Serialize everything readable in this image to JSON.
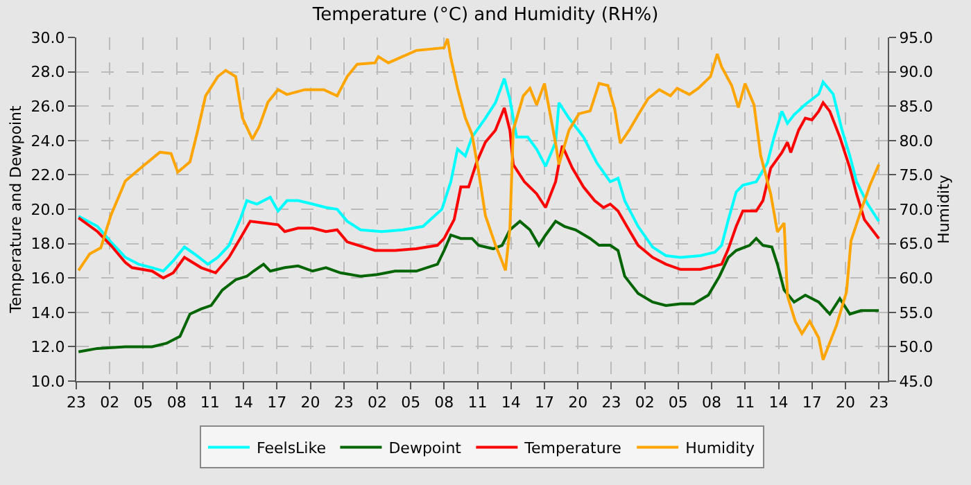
{
  "chart_data": {
    "type": "line",
    "title": "Temperature (°C) and Humidity (RH%)",
    "ylabel": "Temperature and Dewpoint",
    "y2label": "Humidity",
    "xlim": [
      "--01-01T23:00",
      "--01-04T23:48"
    ],
    "xticks": [
      {
        "value": "--01-01T23:00",
        "label": "23"
      },
      {
        "value": "--01-02T02:00",
        "label": "02"
      },
      {
        "value": "--01-02T05:00",
        "label": "05"
      },
      {
        "value": "--01-02T08:00",
        "label": "08"
      },
      {
        "value": "--01-02T11:00",
        "label": "11"
      },
      {
        "value": "--01-02T14:00",
        "label": "14"
      },
      {
        "value": "--01-02T17:00",
        "label": "17"
      },
      {
        "value": "--01-02T20:00",
        "label": "20"
      },
      {
        "value": "--01-02T23:00",
        "label": "23"
      },
      {
        "value": "--01-03T02:00",
        "label": "02"
      },
      {
        "value": "--01-03T05:00",
        "label": "05"
      },
      {
        "value": "--01-03T08:00",
        "label": "08"
      },
      {
        "value": "--01-03T11:00",
        "label": "11"
      },
      {
        "value": "--01-03T14:00",
        "label": "14"
      },
      {
        "value": "--01-03T17:00",
        "label": "17"
      },
      {
        "value": "--01-03T20:00",
        "label": "20"
      },
      {
        "value": "--01-03T23:00",
        "label": "23"
      },
      {
        "value": "--01-04T02:00",
        "label": "02"
      },
      {
        "value": "--01-04T05:00",
        "label": "05"
      },
      {
        "value": "--01-04T08:00",
        "label": "08"
      },
      {
        "value": "--01-04T11:00",
        "label": "11"
      },
      {
        "value": "--01-04T14:00",
        "label": "14"
      },
      {
        "value": "--01-04T17:00",
        "label": "17"
      },
      {
        "value": "--01-04T20:00",
        "label": "20"
      },
      {
        "value": "--01-04T23:00",
        "label": "23"
      }
    ],
    "ylim": [
      10,
      30
    ],
    "yticks": [
      {
        "value": 10,
        "label": "10.0"
      },
      {
        "value": 12,
        "label": "12.0"
      },
      {
        "value": 14,
        "label": "14.0"
      },
      {
        "value": 16,
        "label": "16.0"
      },
      {
        "value": 18,
        "label": "18.0"
      },
      {
        "value": 20,
        "label": "20.0"
      },
      {
        "value": 22,
        "label": "22.0"
      },
      {
        "value": 24,
        "label": "24.0"
      },
      {
        "value": 26,
        "label": "26.0"
      },
      {
        "value": 28,
        "label": "28.0"
      },
      {
        "value": 30,
        "label": "30.0"
      }
    ],
    "y2lim": [
      45,
      95
    ],
    "y2ticks": [
      {
        "value": 45,
        "label": "45.0"
      },
      {
        "value": 50,
        "label": "50.0"
      },
      {
        "value": 55,
        "label": "55.0"
      },
      {
        "value": 60,
        "label": "60.0"
      },
      {
        "value": 65,
        "label": "65.0"
      },
      {
        "value": 70,
        "label": "70.0"
      },
      {
        "value": 75,
        "label": "75.0"
      },
      {
        "value": 80,
        "label": "80.0"
      },
      {
        "value": 85,
        "label": "85.0"
      },
      {
        "value": 90,
        "label": "90.0"
      },
      {
        "value": 95,
        "label": "95.0"
      }
    ],
    "grid": true,
    "legend": "bottom",
    "marker": "none",
    "line_style": "solid",
    "series": [
      {
        "name": "FeelsLike",
        "color": "#00ffff",
        "x": [
          "--01-01T23:12",
          "--01-02T00:54",
          "--01-02T02:06",
          "--01-02T03:24",
          "--01-02T04:36",
          "--01-02T05:48",
          "--01-02T06:48",
          "--01-02T07:42",
          "--01-02T08:42",
          "--01-02T09:36",
          "--01-02T10:48",
          "--01-02T11:42",
          "--01-02T12:42",
          "--01-02T13:42",
          "--01-02T14:18",
          "--01-02T15:12",
          "--01-02T16:24",
          "--01-02T17:06",
          "--01-02T17:54",
          "--01-02T18:54",
          "--01-02T20:12",
          "--01-02T21:24",
          "--01-02T22:24",
          "--01-02T23:18",
          "--01-03T00:30",
          "--01-03T02:24",
          "--01-03T04:18",
          "--01-03T06:06",
          "--01-03T07:48",
          "--01-03T08:36",
          "--01-03T09:12",
          "--01-03T09:54",
          "--01-03T10:30",
          "--01-03T11:42",
          "--01-03T12:36",
          "--01-03T13:24",
          "--01-03T13:54",
          "--01-03T14:30",
          "--01-03T15:30",
          "--01-03T16:18",
          "--01-03T17:06",
          "--01-03T18:00",
          "--01-03T18:18",
          "--01-03T19:12",
          "--01-03T20:30",
          "--01-03T21:42",
          "--01-03T22:54",
          "--01-03T23:36",
          "--01-04T00:12",
          "--01-04T01:24",
          "--01-04T02:42",
          "--01-04T03:54",
          "--01-04T05:12",
          "--01-04T07:00",
          "--01-04T08:18",
          "--01-04T08:54",
          "--01-04T09:30",
          "--01-04T10:12",
          "--01-04T10:48",
          "--01-04T12:00",
          "--01-04T13:00",
          "--01-04T13:36",
          "--01-04T14:18",
          "--01-04T14:48",
          "--01-04T15:24",
          "--01-04T16:24",
          "--01-04T17:36",
          "--01-04T18:00",
          "--01-04T18:54",
          "--01-04T19:42",
          "--01-04T20:24",
          "--01-04T21:00",
          "--01-04T22:00",
          "--01-04T23:00"
        ],
        "values": [
          19.6,
          19.0,
          18.1,
          17.2,
          16.8,
          16.6,
          16.4,
          17.0,
          17.8,
          17.4,
          16.8,
          17.2,
          17.9,
          19.4,
          20.5,
          20.3,
          20.7,
          19.9,
          20.5,
          20.5,
          20.3,
          20.1,
          20.0,
          19.3,
          18.8,
          18.7,
          18.8,
          19.0,
          20.0,
          21.6,
          23.5,
          23.1,
          24.2,
          25.3,
          26.2,
          27.6,
          26.4,
          24.2,
          24.2,
          23.5,
          22.5,
          23.9,
          26.2,
          25.3,
          24.2,
          22.7,
          21.6,
          21.8,
          20.5,
          19.0,
          17.8,
          17.3,
          17.2,
          17.3,
          17.5,
          17.9,
          19.4,
          21.0,
          21.4,
          21.6,
          22.7,
          24.2,
          25.7,
          25.0,
          25.5,
          26.1,
          26.7,
          27.4,
          26.7,
          24.6,
          23.1,
          21.6,
          20.3,
          19.3
        ]
      },
      {
        "name": "Dewpoint",
        "color": "#006400",
        "x": [
          "--01-01T23:12",
          "--01-02T00:54",
          "--01-02T03:24",
          "--01-02T05:48",
          "--01-02T07:06",
          "--01-02T08:18",
          "--01-02T09:12",
          "--01-02T10:12",
          "--01-02T11:06",
          "--01-02T12:06",
          "--01-02T13:18",
          "--01-02T14:18",
          "--01-02T14:54",
          "--01-02T15:48",
          "--01-02T16:24",
          "--01-02T17:42",
          "--01-02T18:54",
          "--01-02T20:12",
          "--01-02T21:24",
          "--01-02T22:42",
          "--01-03T00:30",
          "--01-03T02:00",
          "--01-03T03:36",
          "--01-03T05:30",
          "--01-03T07:24",
          "--01-03T08:00",
          "--01-03T08:36",
          "--01-03T09:30",
          "--01-03T10:30",
          "--01-03T11:06",
          "--01-03T12:24",
          "--01-03T13:12",
          "--01-03T13:54",
          "--01-03T14:48",
          "--01-03T15:42",
          "--01-03T16:30",
          "--01-03T17:06",
          "--01-03T18:00",
          "--01-03T18:48",
          "--01-03T19:48",
          "--01-03T21:06",
          "--01-03T21:54",
          "--01-03T22:54",
          "--01-03T23:36",
          "--01-04T00:12",
          "--01-04T00:48",
          "--01-04T01:24",
          "--01-04T02:42",
          "--01-04T03:54",
          "--01-04T05:12",
          "--01-04T06:24",
          "--01-04T07:42",
          "--01-04T08:42",
          "--01-04T09:30",
          "--01-04T10:12",
          "--01-04T11:24",
          "--01-04T12:00",
          "--01-04T12:36",
          "--01-04T13:24",
          "--01-04T13:54",
          "--01-04T14:30",
          "--01-04T15:24",
          "--01-04T16:24",
          "--01-04T17:36",
          "--01-04T18:36",
          "--01-04T19:30",
          "--01-04T20:24",
          "--01-04T21:24",
          "--01-04T23:00"
        ],
        "values": [
          11.7,
          11.9,
          12.0,
          12.0,
          12.2,
          12.6,
          13.9,
          14.2,
          14.4,
          15.3,
          15.9,
          16.1,
          16.4,
          16.8,
          16.4,
          16.6,
          16.7,
          16.4,
          16.6,
          16.3,
          16.1,
          16.2,
          16.4,
          16.4,
          16.8,
          17.6,
          18.5,
          18.3,
          18.3,
          17.9,
          17.7,
          17.9,
          18.8,
          19.3,
          18.8,
          17.9,
          18.5,
          19.3,
          19.0,
          18.8,
          18.3,
          17.9,
          17.9,
          17.6,
          16.1,
          15.6,
          15.1,
          14.6,
          14.4,
          14.5,
          14.5,
          15.0,
          16.1,
          17.2,
          17.6,
          17.9,
          18.3,
          17.9,
          17.8,
          16.8,
          15.3,
          14.6,
          15.0,
          14.6,
          13.9,
          14.8,
          13.9,
          14.1,
          14.1
        ]
      },
      {
        "name": "Temperature",
        "color": "#ff0000",
        "x": [
          "--01-01T23:12",
          "--01-02T00:54",
          "--01-02T02:06",
          "--01-02T03:24",
          "--01-02T04:00",
          "--01-02T05:48",
          "--01-02T06:48",
          "--01-02T07:42",
          "--01-02T08:42",
          "--01-02T10:12",
          "--01-02T11:30",
          "--01-02T12:42",
          "--01-02T13:42",
          "--01-02T14:36",
          "--01-02T15:48",
          "--01-02T17:06",
          "--01-02T17:42",
          "--01-02T18:54",
          "--01-02T20:12",
          "--01-02T21:24",
          "--01-02T22:24",
          "--01-02T23:18",
          "--01-03T00:18",
          "--01-03T01:48",
          "--01-03T03:36",
          "--01-03T05:30",
          "--01-03T07:24",
          "--01-03T08:00",
          "--01-03T08:54",
          "--01-03T09:30",
          "--01-03T10:12",
          "--01-03T10:54",
          "--01-03T11:42",
          "--01-03T12:36",
          "--01-03T13:24",
          "--01-03T13:54",
          "--01-03T14:12",
          "--01-03T15:12",
          "--01-03T16:18",
          "--01-03T17:06",
          "--01-03T18:00",
          "--01-03T18:36",
          "--01-03T19:30",
          "--01-03T20:30",
          "--01-03T21:30",
          "--01-03T22:18",
          "--01-03T22:54",
          "--01-03T23:36",
          "--01-04T00:24",
          "--01-04T01:24",
          "--01-04T02:42",
          "--01-04T03:54",
          "--01-04T05:12",
          "--01-04T07:00",
          "--01-04T08:18",
          "--01-04T08:54",
          "--01-04T09:30",
          "--01-04T10:12",
          "--01-04T10:48",
          "--01-04T12:00",
          "--01-04T12:36",
          "--01-04T13:18",
          "--01-04T14:18",
          "--01-04T14:48",
          "--01-04T15:06",
          "--01-04T15:48",
          "--01-04T16:24",
          "--01-04T17:00",
          "--01-04T17:36",
          "--01-04T18:00",
          "--01-04T18:36",
          "--01-04T19:30",
          "--01-04T20:24",
          "--01-04T21:00",
          "--01-04T21:42",
          "--01-04T23:00"
        ],
        "values": [
          19.5,
          18.7,
          17.9,
          16.9,
          16.6,
          16.4,
          16.0,
          16.3,
          17.2,
          16.6,
          16.3,
          17.2,
          18.3,
          19.3,
          19.2,
          19.1,
          18.7,
          18.9,
          18.9,
          18.7,
          18.8,
          18.1,
          17.9,
          17.6,
          17.6,
          17.7,
          17.9,
          18.3,
          19.4,
          21.3,
          21.3,
          22.7,
          23.9,
          24.6,
          25.9,
          24.6,
          22.6,
          21.6,
          20.9,
          20.1,
          21.6,
          23.7,
          22.4,
          21.3,
          20.5,
          20.1,
          20.3,
          19.9,
          19.0,
          17.9,
          17.2,
          16.8,
          16.5,
          16.5,
          16.7,
          16.8,
          17.7,
          19.0,
          19.9,
          19.9,
          20.5,
          22.4,
          23.3,
          23.9,
          23.3,
          24.6,
          25.3,
          25.2,
          25.7,
          26.2,
          25.7,
          24.2,
          22.4,
          20.9,
          19.4,
          18.3
        ]
      },
      {
        "name": "Humidity",
        "color": "#ffa500",
        "axis": "y2",
        "x": [
          "--01-01T23:12",
          "--01-02T00:12",
          "--01-02T01:12",
          "--01-02T02:06",
          "--01-02T03:24",
          "--01-02T05:00",
          "--01-02T06:30",
          "--01-02T07:30",
          "--01-02T08:06",
          "--01-02T09:12",
          "--01-02T09:54",
          "--01-02T10:36",
          "--01-02T11:42",
          "--01-02T12:24",
          "--01-02T13:18",
          "--01-02T13:54",
          "--01-02T14:48",
          "--01-02T15:24",
          "--01-02T16:12",
          "--01-02T17:06",
          "--01-02T17:54",
          "--01-02T19:30",
          "--01-02T21:12",
          "--01-02T22:24",
          "--01-02T23:18",
          "--01-03T00:12",
          "--01-03T01:48",
          "--01-03T02:06",
          "--01-03T03:00",
          "--01-03T05:30",
          "--01-03T08:00",
          "--01-03T08:18",
          "--01-03T08:36",
          "--01-03T09:12",
          "--01-03T09:54",
          "--01-03T10:30",
          "--01-03T11:06",
          "--01-03T11:42",
          "--01-03T12:36",
          "--01-03T13:12",
          "--01-03T13:30",
          "--01-03T13:54",
          "--01-03T14:12",
          "--01-03T15:06",
          "--01-03T15:42",
          "--01-03T16:18",
          "--01-03T17:00",
          "--01-03T17:18",
          "--01-03T18:00",
          "--01-03T18:18",
          "--01-03T19:12",
          "--01-03T20:06",
          "--01-03T21:06",
          "--01-03T21:54",
          "--01-03T22:42",
          "--01-03T23:18",
          "--01-03T23:48",
          "--01-04T00:36",
          "--01-04T01:24",
          "--01-04T02:18",
          "--01-04T03:18",
          "--01-04T04:18",
          "--01-04T04:54",
          "--01-04T06:00",
          "--01-04T06:48",
          "--01-04T07:54",
          "--01-04T08:30",
          "--01-04T08:54",
          "--01-04T09:48",
          "--01-04T10:24",
          "--01-04T11:00",
          "--01-04T11:48",
          "--01-04T12:24",
          "--01-04T13:18",
          "--01-04T13:54",
          "--01-04T14:30",
          "--01-04T14:48",
          "--01-04T15:30",
          "--01-04T16:06",
          "--01-04T16:48",
          "--01-04T17:36",
          "--01-04T18:00",
          "--01-04T18:36",
          "--01-04T19:12",
          "--01-04T20:06",
          "--01-04T20:30",
          "--01-04T21:24",
          "--01-04T22:12",
          "--01-04T23:00"
        ],
        "values": [
          61.1,
          63.5,
          64.4,
          69.1,
          74.1,
          76.3,
          78.3,
          78.1,
          75.4,
          76.9,
          81.5,
          86.5,
          89.3,
          90.2,
          89.3,
          83.3,
          80.2,
          82.0,
          85.6,
          87.4,
          86.7,
          87.4,
          87.4,
          86.5,
          89.3,
          91.1,
          91.3,
          92.2,
          91.3,
          93.1,
          93.5,
          94.8,
          92.0,
          87.6,
          83.3,
          80.9,
          75.4,
          69.1,
          64.8,
          62.4,
          61.1,
          67.2,
          81.5,
          86.5,
          87.6,
          85.2,
          88.3,
          85.7,
          79.6,
          76.5,
          81.5,
          83.9,
          84.3,
          88.3,
          88.0,
          84.6,
          79.6,
          81.5,
          83.7,
          86.1,
          87.4,
          86.5,
          87.6,
          86.7,
          87.6,
          89.3,
          92.6,
          90.7,
          88.0,
          84.8,
          88.3,
          85.2,
          77.8,
          72.2,
          66.7,
          68.0,
          57.4,
          53.7,
          51.9,
          53.7,
          51.3,
          48.1,
          50.6,
          53.1,
          58.0,
          65.4,
          69.8,
          73.5,
          76.5
        ]
      }
    ]
  }
}
